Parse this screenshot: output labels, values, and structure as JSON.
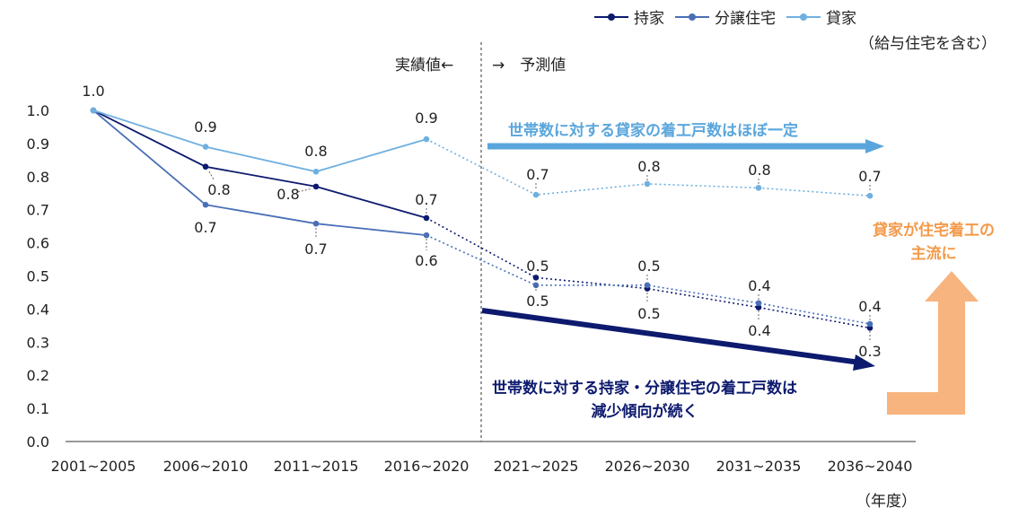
{
  "legend": {
    "owned": "持家",
    "condo": "分譲住宅",
    "rental": "貸家",
    "rental_note": "（給与住宅を含む）"
  },
  "periods": {
    "actual": "実績値←",
    "forecast": "→　予測値"
  },
  "unit": "（年度）",
  "annotations": {
    "rental_trend": "世帯数に対する貸家の着工戸数はほぼ一定",
    "owned_trend_line1": "世帯数に対する持家・分譲住宅の着工戸数は",
    "owned_trend_line2": "減少傾向が続く",
    "mainstream_line1": "貸家が住宅着工の",
    "mainstream_line2": "主流に"
  },
  "colors": {
    "owned": "#0d1a6e",
    "condo": "#4a6fb8",
    "rental": "#6fb0e0",
    "rental_arrow": "#5aa6dc",
    "owned_arrow": "#0d1a6e",
    "orange": "#f7b47e",
    "orange_text": "#f39a4a"
  },
  "chart_data": {
    "type": "line",
    "categories": [
      "2001~2005",
      "2006~2010",
      "2011~2015",
      "2016~2020",
      "2021~2025",
      "2026~2030",
      "2031~2035",
      "2036~2040"
    ],
    "ylim": [
      0,
      1.0
    ],
    "yticks": [
      "0.0",
      "0.1",
      "0.2",
      "0.3",
      "0.4",
      "0.5",
      "0.6",
      "0.7",
      "0.8",
      "0.9",
      "1.0"
    ],
    "actual_forecast_boundary": "between 2016~2020 and 2021~2025",
    "series": [
      {
        "name": "持家",
        "values": [
          1.0,
          0.83,
          0.77,
          0.675,
          0.495,
          0.462,
          0.405,
          0.343
        ],
        "labels": [
          "1.0",
          "0.8",
          "0.8",
          "0.7",
          "0.5",
          "0.5",
          "0.4",
          "0.3"
        ]
      },
      {
        "name": "分譲住宅",
        "values": [
          1.0,
          0.715,
          0.658,
          0.623,
          0.472,
          0.472,
          0.418,
          0.355
        ],
        "labels": [
          "",
          "0.7",
          "0.7",
          "0.6",
          "0.5",
          "0.5",
          "0.4",
          "0.4"
        ]
      },
      {
        "name": "貸家",
        "values": [
          1.0,
          0.89,
          0.815,
          0.913,
          0.745,
          0.778,
          0.766,
          0.742
        ],
        "labels": [
          "",
          "0.9",
          "0.8",
          "0.9",
          "0.7",
          "0.8",
          "0.8",
          "0.7"
        ]
      }
    ]
  }
}
